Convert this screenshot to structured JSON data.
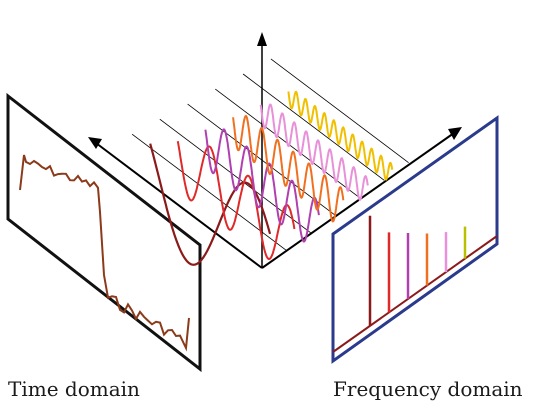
{
  "captions": {
    "time": "Time domain",
    "frequency": "Frequency domain"
  },
  "colors": {
    "time_panel_border": "#111111",
    "freq_panel_border": "#2a3a8c",
    "signal": "#8b3a1a",
    "axes": "#000000",
    "grid_line": "#000000"
  },
  "waves": [
    {
      "color": "#8b1a1a"
    },
    {
      "color": "#e02a2a"
    },
    {
      "color": "#b040b0"
    },
    {
      "color": "#f07020"
    },
    {
      "color": "#e890d8"
    },
    {
      "color": "#f0c000"
    }
  ],
  "spectrum_spikes": [
    {
      "color": "#8b1a1a"
    },
    {
      "color": "#e02a2a"
    },
    {
      "color": "#b040b0"
    },
    {
      "color": "#f07020"
    },
    {
      "color": "#e890d8"
    },
    {
      "color": "#b8c000"
    }
  ]
}
